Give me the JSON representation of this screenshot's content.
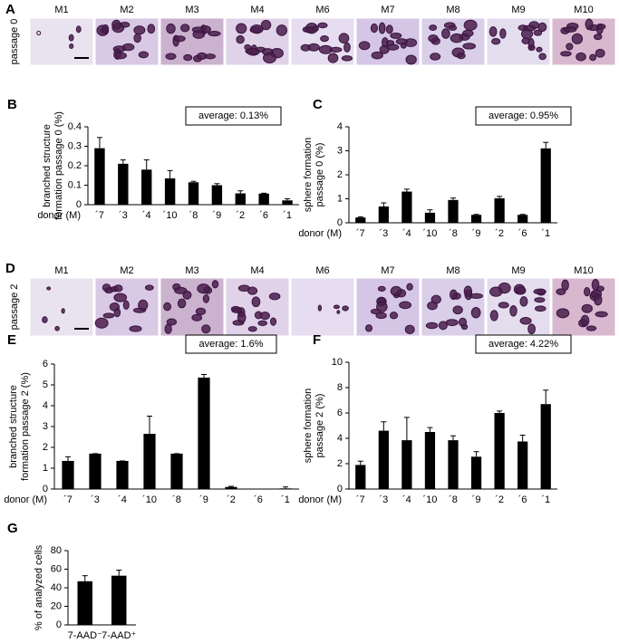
{
  "image_panels": [
    {
      "panel": "A",
      "label": "passage 0",
      "samples": [
        "M1",
        "M2",
        "M3",
        "M4",
        "M6",
        "M7",
        "M8",
        "M9",
        "M10"
      ]
    },
    {
      "panel": "D",
      "label": "passage 2",
      "samples": [
        "M1",
        "M2",
        "M3",
        "M4",
        "M6",
        "M7",
        "M8",
        "M9",
        "M10"
      ]
    }
  ],
  "chart_data": [
    {
      "type": "bar",
      "panel": "B",
      "ylabel": [
        "branched structure",
        "formation passage 0 (%)"
      ],
      "xlabel": "donor (M)",
      "annotation": "average: 0.13%",
      "categories": [
        "´7",
        "´3",
        "´4",
        "´10",
        "´8",
        "´9",
        "´2",
        "´6",
        "´1"
      ],
      "values": [
        0.29,
        0.21,
        0.18,
        0.135,
        0.115,
        0.1,
        0.058,
        0.057,
        0.022
      ],
      "errors": [
        0.055,
        0.02,
        0.05,
        0.04,
        0.005,
        0.008,
        0.013,
        0.002,
        0.008
      ],
      "color": "#000000",
      "ylim": [
        0,
        0.4
      ],
      "yticks": [
        0,
        0.1,
        0.2,
        0.3,
        0.4
      ]
    },
    {
      "type": "bar",
      "panel": "C",
      "ylabel": [
        "sphere formation",
        "passage 0 (%)"
      ],
      "xlabel": "donor (M)",
      "annotation": "average: 0.95%",
      "categories": [
        "´7",
        "´3",
        "´4",
        "´10",
        "´8",
        "´9",
        "´2",
        "´6",
        "´1"
      ],
      "values": [
        0.22,
        0.68,
        1.3,
        0.42,
        0.95,
        0.33,
        1.02,
        0.33,
        3.1
      ],
      "errors": [
        0.03,
        0.15,
        0.1,
        0.12,
        0.08,
        0.02,
        0.08,
        0.02,
        0.25
      ],
      "color": "#000000",
      "ylim": [
        0,
        4
      ],
      "yticks": [
        0,
        1,
        2,
        3,
        4
      ]
    },
    {
      "type": "bar",
      "panel": "E",
      "ylabel": [
        "branched structure",
        "formation passage 2 (%)"
      ],
      "xlabel": "donor (M)",
      "annotation": "average: 1.6%",
      "categories": [
        "´7",
        "´3",
        "´4",
        "´10",
        "´8",
        "´9",
        "´2",
        "´6",
        "´1"
      ],
      "values": [
        1.35,
        1.7,
        1.35,
        2.65,
        1.7,
        5.35,
        0.1,
        0,
        0.03
      ],
      "errors": [
        0.2,
        0,
        0,
        0.85,
        0,
        0.15,
        0.03,
        0,
        0.07
      ],
      "color": "#000000",
      "ylim": [
        0,
        6
      ],
      "yticks": [
        0,
        1,
        2,
        3,
        4,
        5,
        6
      ]
    },
    {
      "type": "bar",
      "panel": "F",
      "ylabel": [
        "sphere formation",
        "passage 2 (%)"
      ],
      "xlabel": "donor (M)",
      "annotation": "average: 4.22%",
      "categories": [
        "´7",
        "´3",
        "´4",
        "´10",
        "´8",
        "´9",
        "´2",
        "´6",
        "´1"
      ],
      "values": [
        1.9,
        4.6,
        3.85,
        4.5,
        3.85,
        2.55,
        6.0,
        3.75,
        6.7
      ],
      "errors": [
        0.3,
        0.7,
        1.8,
        0.35,
        0.35,
        0.4,
        0.15,
        0.5,
        1.1
      ],
      "color": "#000000",
      "ylim": [
        0,
        10
      ],
      "yticks": [
        0,
        2,
        4,
        6,
        8,
        10
      ]
    },
    {
      "type": "bar",
      "panel": "G",
      "ylabel": [
        "% of analyzed cells"
      ],
      "categories": [
        "7-AAD⁻",
        "7-AAD⁺"
      ],
      "values": [
        47,
        53
      ],
      "errors": [
        6,
        6
      ],
      "color": "#000000",
      "ylim": [
        0,
        80
      ],
      "yticks": [
        0,
        20,
        40,
        60,
        80
      ]
    }
  ]
}
